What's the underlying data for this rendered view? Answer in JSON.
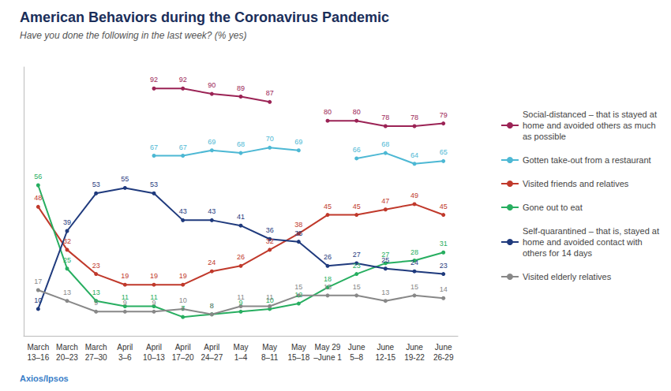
{
  "chart_data": {
    "type": "line",
    "title": "American Behaviors during the Coronavirus Pandemic",
    "subtitle": "Have you done the following in the last week? (% yes)",
    "annotations": [
      "Axios/Ipsos"
    ],
    "categories": [
      "March\n13–16",
      "March\n20–23",
      "March\n27–30",
      "April\n3–6",
      "April\n10–13",
      "April\n17–20",
      "April\n24–27",
      "May\n1–4",
      "May\n8–11",
      "May\n15–18",
      "May 29\n–June 1",
      "June\n5–8",
      "June\n12-15",
      "June\n19-22",
      "June\n26-29"
    ],
    "series": [
      {
        "name": "Social-distanced – that is stayed at\nhome and avoided others as much\nas possible",
        "color": "#9b2355",
        "values": [
          null,
          null,
          null,
          null,
          92,
          92,
          90,
          89,
          87,
          null,
          80,
          80,
          78,
          78,
          79
        ]
      },
      {
        "name": "Gotten take-out from a restaurant",
        "color": "#4db8d4",
        "values": [
          null,
          null,
          null,
          null,
          67,
          67,
          69,
          68,
          70,
          69,
          null,
          66,
          68,
          64,
          65
        ]
      },
      {
        "name": "Visited friends and relatives",
        "color": "#c0392b",
        "values": [
          48,
          32,
          23,
          19,
          19,
          19,
          24,
          26,
          32,
          38,
          45,
          45,
          47,
          49,
          45
        ]
      },
      {
        "name": "Gone out to eat",
        "color": "#27ae60",
        "values": [
          56,
          25,
          13,
          11,
          11,
          7,
          8,
          9,
          10,
          12,
          18,
          23,
          27,
          28,
          31
        ]
      },
      {
        "name": "Self-quarantined – that is, stayed at\nhome and avoided contact with\nothers for 14 days",
        "color": "#1f3a7d",
        "values": [
          10,
          39,
          53,
          55,
          53,
          43,
          43,
          41,
          36,
          35,
          26,
          27,
          25,
          24,
          23
        ]
      },
      {
        "name": "Visited elderly relatives",
        "color": "#888888",
        "values": [
          17,
          13,
          9,
          9,
          9,
          10,
          8,
          11,
          11,
          15,
          15,
          15,
          13,
          15,
          14
        ]
      }
    ],
    "ylim": [
      0,
      100
    ],
    "grid": false,
    "legend": "right",
    "data_labels": true,
    "tick_labels": "x",
    "marker": "circle"
  }
}
